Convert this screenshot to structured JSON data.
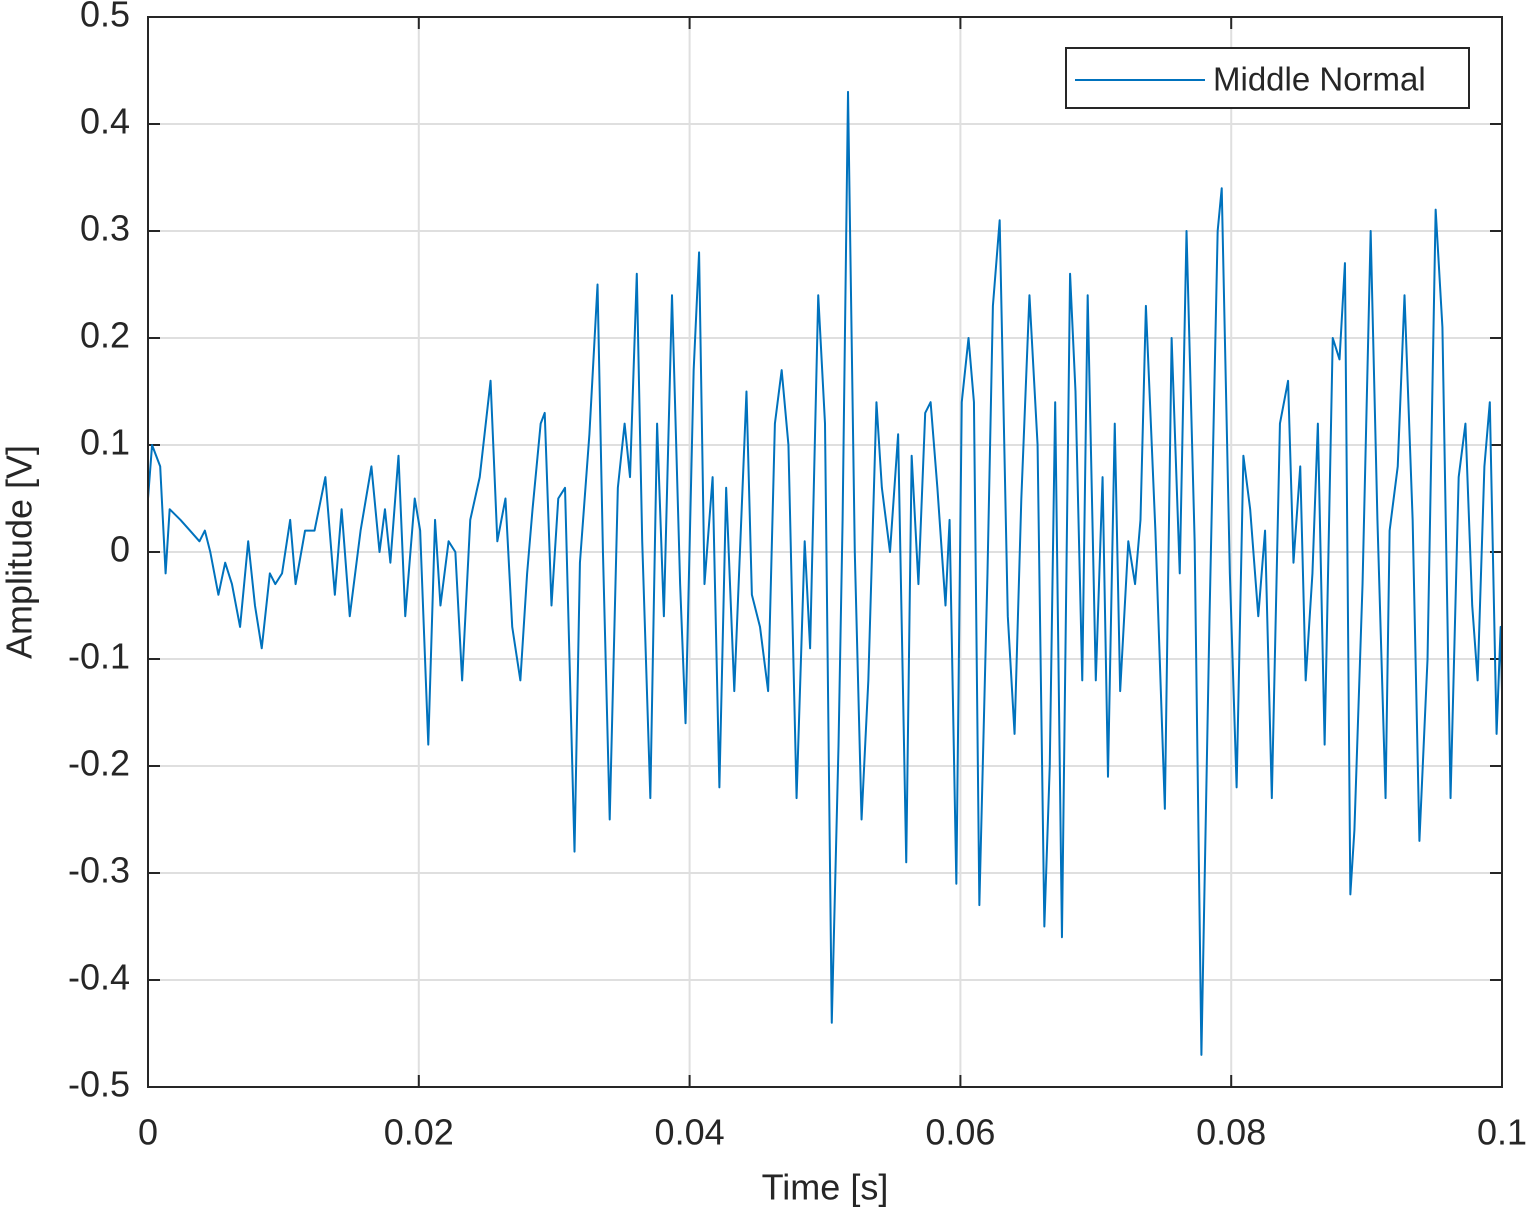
{
  "chart_data": {
    "type": "line",
    "x_label": "Time [s]",
    "y_label": "Amplitude [V]",
    "x": [
      0,
      0.0003,
      0.0009,
      0.0013,
      0.0016,
      0.0024,
      0.0031,
      0.0038,
      0.0042,
      0.0046,
      0.0052,
      0.0057,
      0.0062,
      0.0068,
      0.0074,
      0.0079,
      0.0084,
      0.009,
      0.0094,
      0.0099,
      0.0105,
      0.0109,
      0.0116,
      0.0123,
      0.0131,
      0.0138,
      0.0143,
      0.0149,
      0.0157,
      0.0165,
      0.0171,
      0.0175,
      0.0179,
      0.0185,
      0.019,
      0.0197,
      0.0201,
      0.0207,
      0.0212,
      0.0216,
      0.0222,
      0.0227,
      0.0232,
      0.0238,
      0.0245,
      0.0253,
      0.0258,
      0.0264,
      0.0269,
      0.0275,
      0.028,
      0.0284,
      0.029,
      0.0293,
      0.0298,
      0.0303,
      0.0308,
      0.0315,
      0.0319,
      0.0326,
      0.0332,
      0.0336,
      0.0341,
      0.0347,
      0.0352,
      0.0356,
      0.0361,
      0.0365,
      0.0371,
      0.0376,
      0.0381,
      0.0387,
      0.0393,
      0.0397,
      0.0403,
      0.0407,
      0.0411,
      0.0417,
      0.0422,
      0.0427,
      0.0433,
      0.0442,
      0.0446,
      0.0452,
      0.0458,
      0.0463,
      0.0468,
      0.0473,
      0.0479,
      0.0485,
      0.0489,
      0.0495,
      0.05,
      0.0505,
      0.051,
      0.0513,
      0.0517,
      0.0522,
      0.0527,
      0.0532,
      0.0538,
      0.0542,
      0.0548,
      0.0554,
      0.056,
      0.0564,
      0.0569,
      0.0574,
      0.0578,
      0.0583,
      0.0589,
      0.0592,
      0.0597,
      0.0601,
      0.0606,
      0.061,
      0.0614,
      0.062,
      0.0624,
      0.0629,
      0.0635,
      0.064,
      0.0645,
      0.0651,
      0.0657,
      0.0662,
      0.0666,
      0.067,
      0.0675,
      0.0681,
      0.0685,
      0.069,
      0.0694,
      0.07,
      0.0705,
      0.0709,
      0.0714,
      0.0718,
      0.0724,
      0.0729,
      0.0733,
      0.0737,
      0.0744,
      0.0751,
      0.0756,
      0.0762,
      0.0767,
      0.0773,
      0.0778,
      0.0784,
      0.079,
      0.0793,
      0.0799,
      0.0804,
      0.0809,
      0.0814,
      0.082,
      0.0825,
      0.083,
      0.0836,
      0.0842,
      0.0846,
      0.0851,
      0.0855,
      0.086,
      0.0864,
      0.0869,
      0.0875,
      0.088,
      0.0884,
      0.0888,
      0.0891,
      0.0897,
      0.0903,
      0.0908,
      0.0914,
      0.0917,
      0.0923,
      0.0928,
      0.0934,
      0.0939,
      0.0945,
      0.0951,
      0.0956,
      0.0962,
      0.0968,
      0.0973,
      0.0978,
      0.0982,
      0.0987,
      0.0991,
      0.0996,
      0.0999,
      0.1
    ],
    "series": [
      {
        "name": "Middle Normal",
        "color": "#0072bd",
        "values": [
          0.05,
          0.1,
          0.08,
          -0.02,
          0.04,
          0.03,
          0.02,
          0.01,
          0.02,
          0.0,
          -0.04,
          -0.01,
          -0.03,
          -0.07,
          0.01,
          -0.05,
          -0.09,
          -0.02,
          -0.03,
          -0.02,
          0.03,
          -0.03,
          0.02,
          0.02,
          0.07,
          -0.04,
          0.04,
          -0.06,
          0.02,
          0.08,
          0.0,
          0.04,
          -0.01,
          0.09,
          -0.06,
          0.05,
          0.02,
          -0.18,
          0.03,
          -0.05,
          0.01,
          0.0,
          -0.12,
          0.03,
          0.07,
          0.16,
          0.01,
          0.05,
          -0.07,
          -0.12,
          -0.02,
          0.04,
          0.12,
          0.13,
          -0.05,
          0.05,
          0.06,
          -0.28,
          -0.01,
          0.11,
          0.25,
          0.0,
          -0.25,
          0.06,
          0.12,
          0.07,
          0.26,
          0.01,
          -0.23,
          0.12,
          -0.06,
          0.24,
          -0.03,
          -0.16,
          0.17,
          0.28,
          -0.03,
          0.07,
          -0.22,
          0.06,
          -0.13,
          0.15,
          -0.04,
          -0.07,
          -0.13,
          0.12,
          0.17,
          0.1,
          -0.23,
          0.01,
          -0.09,
          0.24,
          0.12,
          -0.44,
          -0.18,
          0.03,
          0.43,
          0.0,
          -0.25,
          -0.12,
          0.14,
          0.06,
          0.0,
          0.11,
          -0.29,
          0.09,
          -0.03,
          0.13,
          0.14,
          0.06,
          -0.05,
          0.03,
          -0.31,
          0.14,
          0.2,
          0.14,
          -0.33,
          -0.02,
          0.23,
          0.31,
          -0.06,
          -0.17,
          0.05,
          0.24,
          0.1,
          -0.35,
          -0.2,
          0.14,
          -0.36,
          0.26,
          0.15,
          -0.12,
          0.24,
          -0.12,
          0.07,
          -0.21,
          0.12,
          -0.13,
          0.01,
          -0.03,
          0.03,
          0.23,
          0.02,
          -0.24,
          0.2,
          -0.02,
          0.3,
          0.01,
          -0.47,
          -0.06,
          0.3,
          0.34,
          -0.02,
          -0.22,
          0.09,
          0.04,
          -0.06,
          0.02,
          -0.23,
          0.12,
          0.16,
          -0.01,
          0.08,
          -0.12,
          -0.02,
          0.12,
          -0.18,
          0.2,
          0.18,
          0.27,
          -0.32,
          -0.26,
          -0.03,
          0.3,
          0.03,
          -0.23,
          0.02,
          0.08,
          0.24,
          0.03,
          -0.27,
          -0.1,
          0.32,
          0.21,
          -0.23,
          0.07,
          0.12,
          -0.05,
          -0.12,
          0.08,
          0.14,
          -0.17,
          -0.07,
          -0.13
        ]
      }
    ],
    "xlim": [
      0,
      0.1
    ],
    "xticks": [
      0,
      0.02,
      0.04,
      0.06,
      0.08,
      0.1
    ],
    "ylim": [
      -0.5,
      0.5
    ],
    "yticks": [
      -0.5,
      -0.4,
      -0.3,
      -0.2,
      -0.1,
      0,
      0.1,
      0.2,
      0.3,
      0.4,
      0.5
    ],
    "grid": true,
    "legend_position": "northeast"
  }
}
